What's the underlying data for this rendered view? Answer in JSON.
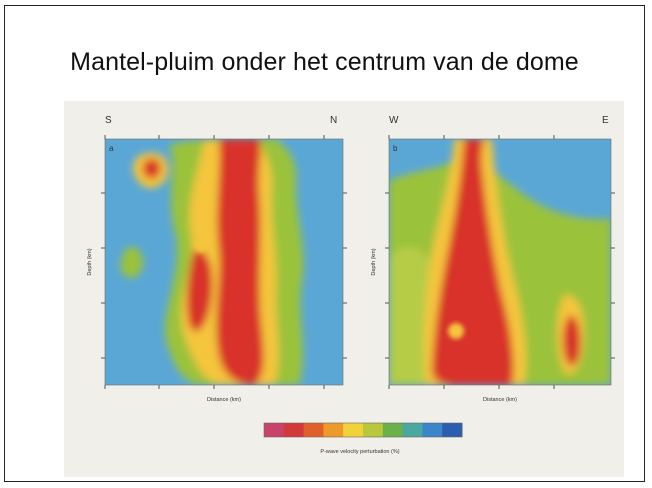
{
  "title": "Mantel-pluim onder het centrum van de dome",
  "panels": [
    {
      "letter": "a",
      "left_dir": "S",
      "right_dir": "N",
      "xlabel": "Distance (km)",
      "ylabel": "Depth (km)"
    },
    {
      "letter": "b",
      "left_dir": "W",
      "right_dir": "E",
      "xlabel": "Distance (km)",
      "ylabel": "Depth (km)"
    }
  ],
  "colorbar": {
    "label": "P-wave velocity perturbation (%)",
    "colors": [
      "#c8426c",
      "#d23a3a",
      "#e0602a",
      "#ee9a2a",
      "#f2d23a",
      "#b8c83a",
      "#6cb04a",
      "#4aa8a0",
      "#3a86c8",
      "#2a5fb0"
    ]
  },
  "colors": {
    "background": "#5aa7d6",
    "anomaly": "#d8312a",
    "transition": "#f4c53c"
  }
}
